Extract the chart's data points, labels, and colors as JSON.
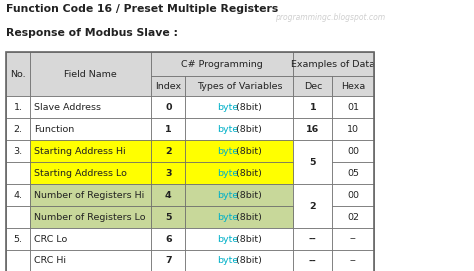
{
  "title1": "Function Code 16 / Preset Multiple Registers",
  "title2": "Response of Modbus Slave :",
  "watermark": "programmingc.blogspot.com",
  "colors": {
    "yellow": "#ffff00",
    "light_green": "#c8d89a",
    "white": "#ffffff",
    "header_bg": "#d8d8d8",
    "border": "#666666",
    "cyan": "#00b0c8",
    "dark": "#222222",
    "watermark_color": "#b0b0b0",
    "no_bg": "#ffffff"
  },
  "rows": [
    {
      "no": "1.",
      "field": "Slave Address",
      "idx": "0",
      "dec": "1",
      "hexa": "01",
      "bg": "#ffffff",
      "dec_val": "1",
      "dec_span": 1
    },
    {
      "no": "2.",
      "field": "Function",
      "idx": "1",
      "dec": "16",
      "hexa": "10",
      "bg": "#ffffff",
      "dec_val": "16",
      "dec_span": 1
    },
    {
      "no": "3.",
      "field": "Starting Address Hi",
      "idx": "2",
      "dec": "5",
      "hexa": "00",
      "bg": "#ffff00",
      "dec_val": "5",
      "dec_span": 2
    },
    {
      "no": "",
      "field": "Starting Address Lo",
      "idx": "3",
      "dec": "",
      "hexa": "05",
      "bg": "#ffff00",
      "dec_val": "",
      "dec_span": 0
    },
    {
      "no": "4.",
      "field": "Number of Registers Hi",
      "idx": "4",
      "dec": "2",
      "hexa": "00",
      "bg": "#c8d89a",
      "dec_val": "2",
      "dec_span": 2
    },
    {
      "no": "",
      "field": "Number of Registers Lo",
      "idx": "5",
      "dec": "",
      "hexa": "02",
      "bg": "#c8d89a",
      "dec_val": "",
      "dec_span": 0
    },
    {
      "no": "5.",
      "field": "CRC Lo",
      "idx": "6",
      "dec": "--",
      "hexa": "--",
      "bg": "#ffffff",
      "dec_val": "--",
      "dec_span": 1
    },
    {
      "no": "",
      "field": "CRC Hi",
      "idx": "7",
      "dec": "--",
      "hexa": "--",
      "bg": "#ffffff",
      "dec_val": "--",
      "dec_span": 1
    }
  ],
  "fig_w": 4.74,
  "fig_h": 2.71,
  "dpi": 100
}
